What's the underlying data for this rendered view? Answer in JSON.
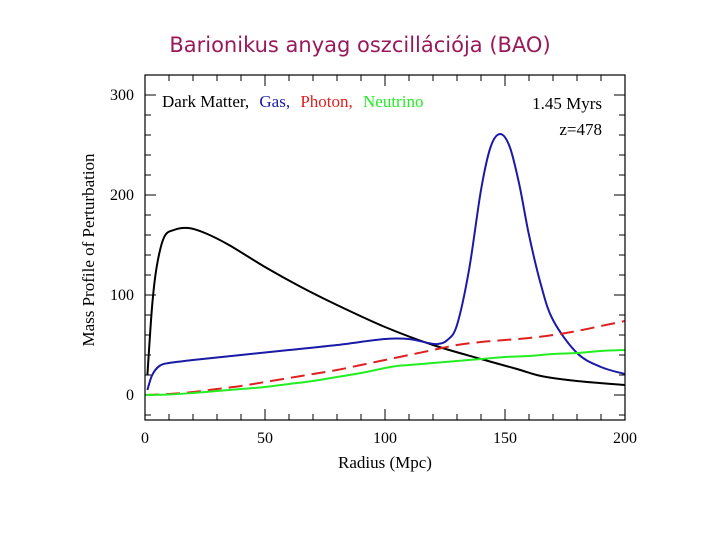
{
  "slide": {
    "title": "Barionikus anyag oszcillációja (BAO)"
  },
  "chart_data": {
    "type": "line",
    "title": "",
    "xlabel": "Radius (Mpc)",
    "ylabel": "Mass Profile of Perturbation",
    "xlim": [
      0,
      200
    ],
    "ylim": [
      -25,
      320
    ],
    "xticks": [
      0,
      50,
      100,
      150,
      200
    ],
    "yticks": [
      0,
      100,
      200,
      300
    ],
    "x_minor_step": 10,
    "y_minor_step": 20,
    "grid": false,
    "legend": {
      "placement": "top-left",
      "entries": [
        {
          "text": "Dark Matter,",
          "color": "#000000"
        },
        {
          "text": "Gas,",
          "color": "#1a1aa6"
        },
        {
          "text": "Photon,",
          "color": "#e02020"
        },
        {
          "text": "Neutrino",
          "color": "#22ee22"
        }
      ]
    },
    "annotations": [
      "1.45 Myrs",
      "z=478"
    ],
    "series": [
      {
        "name": "Dark Matter",
        "color": "#000000",
        "dash": false,
        "x": [
          1,
          3,
          5,
          8,
          12,
          18,
          25,
          35,
          50,
          65,
          80,
          100,
          120,
          140,
          155,
          165,
          180,
          200
        ],
        "y": [
          20,
          90,
          130,
          158,
          165,
          167,
          162,
          150,
          128,
          108,
          90,
          68,
          50,
          36,
          26,
          19,
          14,
          10
        ]
      },
      {
        "name": "Gas",
        "color": "#1a1aa6",
        "dash": false,
        "x": [
          1,
          3,
          6,
          10,
          20,
          40,
          60,
          80,
          100,
          110,
          118,
          122,
          126,
          130,
          135,
          140,
          144,
          148,
          152,
          156,
          160,
          165,
          170,
          180,
          190,
          200
        ],
        "y": [
          5,
          20,
          29,
          32,
          35,
          40,
          45,
          50,
          56,
          56,
          52,
          51,
          55,
          70,
          125,
          205,
          248,
          261,
          248,
          210,
          160,
          110,
          75,
          42,
          28,
          21
        ]
      },
      {
        "name": "Photon",
        "color": "#e02020",
        "dash": true,
        "x": [
          0,
          10,
          20,
          30,
          40,
          50,
          60,
          70,
          80,
          90,
          100,
          110,
          120,
          130,
          140,
          150,
          160,
          170,
          180,
          190,
          200
        ],
        "y": [
          0,
          1,
          3,
          6,
          9,
          13,
          17,
          21,
          25,
          30,
          35,
          40,
          45,
          50,
          53,
          55,
          57,
          60,
          64,
          69,
          74
        ]
      },
      {
        "name": "Neutrino",
        "color": "#22ee22",
        "dash": false,
        "x": [
          0,
          10,
          20,
          30,
          40,
          50,
          60,
          70,
          80,
          90,
          100,
          105,
          110,
          120,
          130,
          140,
          150,
          160,
          170,
          180,
          190,
          200
        ],
        "y": [
          0,
          0.5,
          2,
          4,
          6,
          8,
          11,
          14,
          18,
          22,
          27,
          29,
          30,
          32,
          34,
          36,
          38,
          39,
          41,
          42,
          44,
          45
        ]
      }
    ]
  }
}
